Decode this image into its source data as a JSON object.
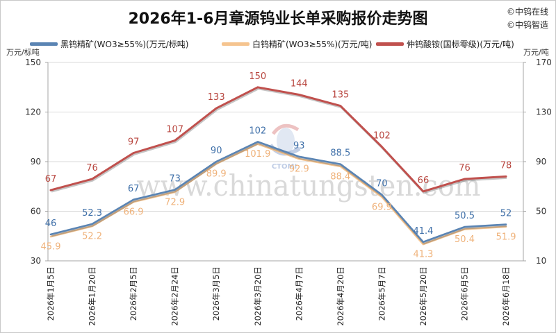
{
  "copyright": [
    "©中钨在线",
    "©中钨智造"
  ],
  "watermark": {
    "url": "www.chinatungsten.com",
    "logo_text": "CTOMI"
  },
  "colors": {
    "grid": "#d9d9d9",
    "axis": "#a6a6a6"
  },
  "chart_data": {
    "type": "line",
    "title": "2026年1-6月章源钨业长单采购报价走势图",
    "categories": [
      "2026年1月5日",
      "2026年1月20日",
      "2026年2月5日",
      "2026年2月24日",
      "2026年3月5日",
      "2026年3月20日",
      "2026年4月7日",
      "2026年4月20日",
      "2026年5月7日",
      "2026年5月20日",
      "2026年6月5日",
      "2026年6月18日"
    ],
    "y_left": {
      "unit": "万元/标吨",
      "range": [
        30,
        150
      ],
      "ticks": [
        30,
        60,
        90,
        120,
        150
      ]
    },
    "y_right": {
      "unit": "万元/吨",
      "range": [
        10,
        170
      ],
      "ticks": [
        10,
        50,
        90,
        130,
        170
      ]
    },
    "series": [
      {
        "name": "黑钨精矿(WO3≥55%)(万元/标吨)",
        "axis": "left",
        "color": "#5a84b3",
        "label_color": "#3e6fa8",
        "values": [
          46,
          52.3,
          67,
          73,
          90,
          102,
          93,
          88.5,
          70,
          41.4,
          50.5,
          52
        ]
      },
      {
        "name": "白钨精矿(WO3≥55%)(万元/吨)",
        "axis": "left",
        "color": "#f5c48f",
        "label_color": "#efb27a",
        "values": [
          45.9,
          52.2,
          66.9,
          72.9,
          89.9,
          101.9,
          92.9,
          88.4,
          69.9,
          41.3,
          50.4,
          51.9
        ]
      },
      {
        "name": "仲钨酸铵(国标零级)(万元/吨)",
        "axis": "right",
        "color": "#c0504d",
        "label_color": "#b8463f",
        "values": [
          67,
          76,
          97,
          107,
          133,
          150,
          144,
          135,
          102,
          66,
          76,
          78
        ]
      }
    ],
    "grid": true,
    "legend_position": "top"
  }
}
